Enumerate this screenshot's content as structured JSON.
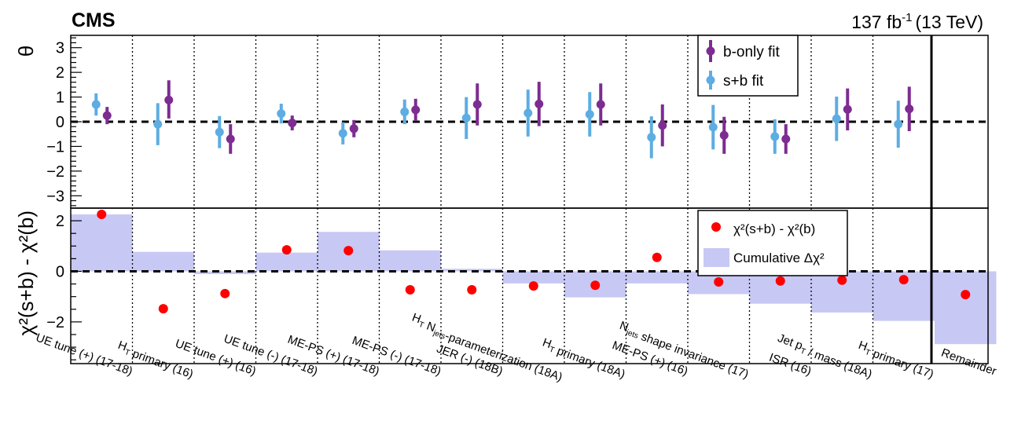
{
  "header": {
    "experiment": "CMS",
    "lumi": "137 fb",
    "lumi_exp": "-1",
    "energy": "(13 TeV)"
  },
  "chart_data": [
    {
      "type": "scatter",
      "ylabel": "θ",
      "ylim": [
        -3.5,
        3.5
      ],
      "yticks": [
        -3,
        -2,
        -1,
        0,
        1,
        2,
        3
      ],
      "reference_line": 0,
      "legend_position": "top-right",
      "series": [
        {
          "name": "b-only fit",
          "color": "#7d2c91",
          "values": [
            0.25,
            0.88,
            -0.7,
            -0.05,
            -0.28,
            0.48,
            0.7,
            0.72,
            0.7,
            -0.15,
            -0.55,
            -0.7,
            0.5,
            0.52
          ],
          "err_lo": [
            0.35,
            0.75,
            0.6,
            0.3,
            0.35,
            0.45,
            0.85,
            0.9,
            0.85,
            0.85,
            0.75,
            0.6,
            0.85,
            0.9
          ],
          "err_hi": [
            0.35,
            0.8,
            0.6,
            0.3,
            0.35,
            0.45,
            0.85,
            0.9,
            0.85,
            0.85,
            0.75,
            0.6,
            0.85,
            0.9
          ]
        },
        {
          "name": "s+b fit",
          "color": "#5dade2",
          "values": [
            0.7,
            -0.1,
            -0.42,
            0.33,
            -0.47,
            0.4,
            0.15,
            0.35,
            0.3,
            -0.63,
            -0.22,
            -0.6,
            0.12,
            -0.1
          ],
          "err_lo": [
            0.45,
            0.85,
            0.65,
            0.4,
            0.45,
            0.5,
            0.85,
            0.95,
            0.9,
            0.85,
            0.9,
            0.7,
            0.9,
            0.95
          ],
          "err_hi": [
            0.45,
            0.85,
            0.65,
            0.4,
            0.45,
            0.5,
            0.85,
            0.95,
            0.9,
            0.85,
            0.9,
            0.7,
            0.9,
            0.95
          ]
        }
      ]
    },
    {
      "type": "bar",
      "ylabel": "χ²(s+b) - χ²(b)",
      "ylim": [
        -3.65,
        2.5
      ],
      "yticks": [
        -2,
        0,
        2
      ],
      "reference_line": 0,
      "legend_position": "top-right",
      "categories": [
        "UE tune (+) (17-18)",
        "H_T primary (16)",
        "UE tune (+) (16)",
        "UE tune (-) (17-18)",
        "ME-PS (+) (17-18)",
        "ME-PS (-) (17-18)",
        "JER (-) (18B)",
        "H_T N_jets-parameterization (18A)",
        "H_T primary (18A)",
        "ME-PS (+) (16)",
        "N_jets shape invariance (17)",
        "ISR (16)",
        "Jet p_T / mass (18A)",
        "H_T primary (17)",
        "Remainder"
      ],
      "series": [
        {
          "name": "χ²(s+b) - χ²(b)",
          "type": "scatter",
          "color": "#ff0000",
          "values": [
            2.25,
            -1.48,
            -0.88,
            0.85,
            0.82,
            -0.73,
            -0.73,
            -0.58,
            -0.55,
            0.55,
            -0.42,
            -0.38,
            -0.35,
            -0.33,
            -0.92
          ]
        },
        {
          "name": "Cumulative Δχ²",
          "type": "bar",
          "color": "#c8c8f5",
          "values": [
            2.25,
            0.77,
            -0.11,
            0.74,
            1.56,
            0.83,
            0.1,
            -0.48,
            -1.03,
            -0.48,
            -0.9,
            -1.28,
            -1.63,
            -1.96,
            -2.88
          ]
        }
      ]
    }
  ],
  "legends": {
    "top": {
      "b_only": "b-only fit",
      "s_b": "s+b fit"
    },
    "bottom": {
      "chi2_points": "χ²(s+b) - χ²(b)",
      "cumulative": "Cumulative Δχ²"
    }
  }
}
